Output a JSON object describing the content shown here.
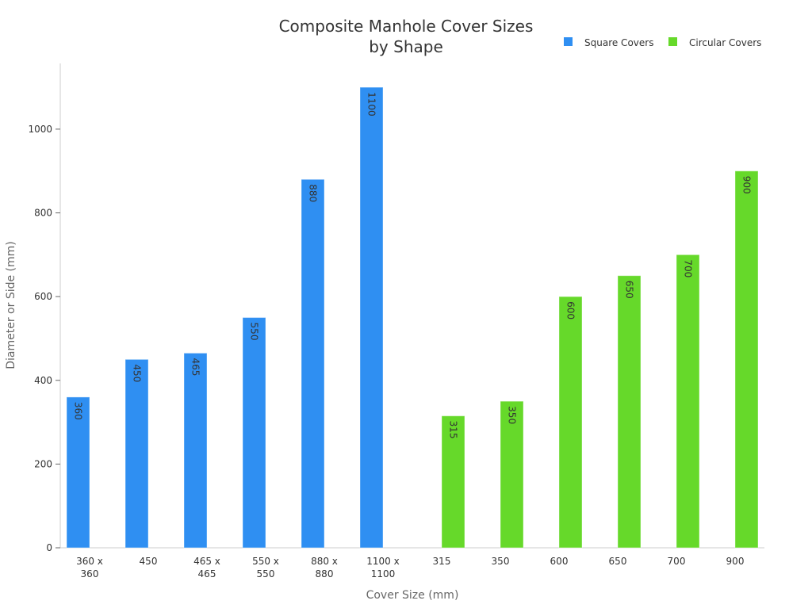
{
  "chart_data": {
    "type": "bar",
    "title": [
      "Composite Manhole Cover Sizes",
      "by Shape"
    ],
    "xlabel": "Cover Size (mm)",
    "ylabel": "Diameter or Side (mm)",
    "ylim": [
      0,
      1157
    ],
    "yticks": [
      0,
      200,
      400,
      600,
      800,
      1000
    ],
    "grid": false,
    "legend_position": "top-right",
    "categories": [
      [
        "360 x",
        "360"
      ],
      [
        "450"
      ],
      [
        "465 x",
        "465"
      ],
      [
        "550 x",
        "550"
      ],
      [
        "880 x",
        "880"
      ],
      [
        "1100 x",
        "1100"
      ],
      [
        "315"
      ],
      [
        "350"
      ],
      [
        "600"
      ],
      [
        "650"
      ],
      [
        "700"
      ],
      [
        "900"
      ]
    ],
    "series": [
      {
        "name": "Square Covers",
        "color": "#2f8ff2",
        "values": [
          360,
          450,
          465,
          550,
          880,
          1100,
          null,
          null,
          null,
          null,
          null,
          null
        ]
      },
      {
        "name": "Circular Covers",
        "color": "#66d92a",
        "values": [
          null,
          null,
          null,
          null,
          null,
          null,
          315,
          350,
          600,
          650,
          700,
          900
        ]
      }
    ]
  }
}
